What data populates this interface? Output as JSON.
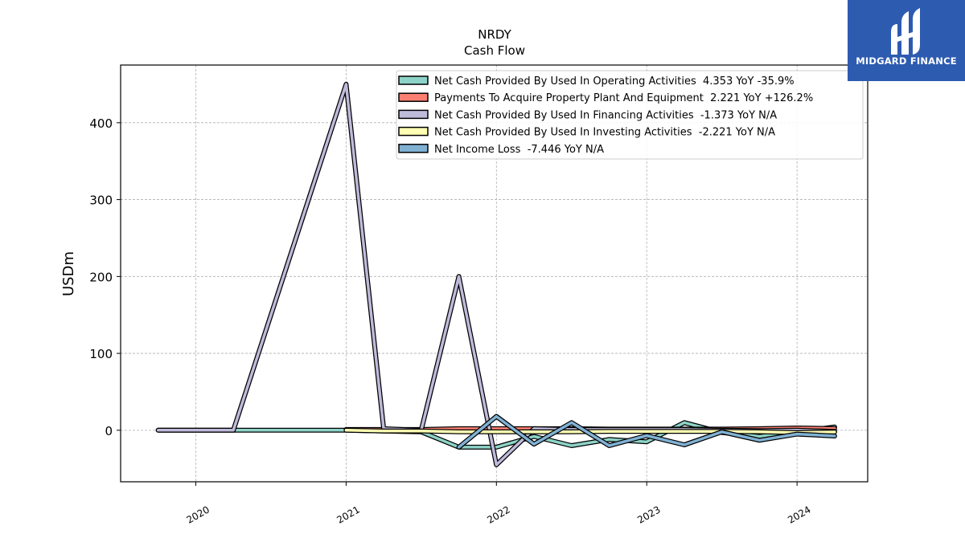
{
  "brand": {
    "name": "MIDGARD FINANCE",
    "logo_icon": "midgard-logo-icon",
    "background": "#2d5bb0"
  },
  "chart_data": {
    "type": "line",
    "title": "NRDY",
    "subtitle": "Cash Flow",
    "xlabel": "",
    "ylabel": "USDm",
    "xlim": [
      2019.5,
      2024.47
    ],
    "ylim": [
      -67,
      475
    ],
    "y_ticks": [
      0,
      100,
      200,
      300,
      400
    ],
    "x_ticks": [
      2020,
      2021,
      2022,
      2023,
      2024
    ],
    "x_tick_labels": [
      "2020",
      "2021",
      "2022",
      "2023",
      "2024"
    ],
    "grid": true,
    "legend_position": "top-right",
    "series": [
      {
        "name": "Net Cash Provided By Used In Operating Activities",
        "legend": "Net Cash Provided By Used In Operating Activities  4.353 YoY -35.9%",
        "color": "#8dd3c7",
        "points": [
          [
            2019.75,
            0
          ],
          [
            2021.0,
            0
          ],
          [
            2021.5,
            -2
          ],
          [
            2021.75,
            -22
          ],
          [
            2022.0,
            -22
          ],
          [
            2022.25,
            -8
          ],
          [
            2022.5,
            -20
          ],
          [
            2022.75,
            -12
          ],
          [
            2023.0,
            -15
          ],
          [
            2023.25,
            10
          ],
          [
            2023.5,
            -3
          ],
          [
            2023.75,
            -8
          ],
          [
            2024.0,
            -2
          ],
          [
            2024.25,
            4.353
          ]
        ]
      },
      {
        "name": "Payments To Acquire Property Plant And Equipment",
        "legend": "Payments To Acquire Property Plant And Equipment  2.221 YoY +126.2%",
        "color": "#fb8072",
        "points": [
          [
            2021.0,
            1
          ],
          [
            2021.25,
            1
          ],
          [
            2021.5,
            1
          ],
          [
            2021.75,
            2
          ],
          [
            2022.0,
            2
          ],
          [
            2022.25,
            2
          ],
          [
            2022.5,
            2
          ],
          [
            2022.75,
            1.5
          ],
          [
            2023.0,
            1.5
          ],
          [
            2023.25,
            1.5
          ],
          [
            2023.5,
            1.5
          ],
          [
            2023.75,
            2
          ],
          [
            2024.0,
            3
          ],
          [
            2024.25,
            2.221
          ]
        ]
      },
      {
        "name": "Net Cash Provided By Used In Financing Activities",
        "legend": "Net Cash Provided By Used In Financing Activities  -1.373 YoY N/A",
        "color": "#bebada",
        "points": [
          [
            2019.75,
            0
          ],
          [
            2020.25,
            0
          ],
          [
            2021.0,
            450
          ],
          [
            2021.25,
            2
          ],
          [
            2021.5,
            0
          ],
          [
            2021.75,
            200
          ],
          [
            2022.0,
            -45
          ],
          [
            2022.25,
            2
          ],
          [
            2022.5,
            1
          ],
          [
            2022.75,
            1
          ],
          [
            2023.0,
            1
          ],
          [
            2023.25,
            1
          ],
          [
            2023.5,
            0
          ],
          [
            2023.75,
            -0.5
          ],
          [
            2024.0,
            0
          ],
          [
            2024.25,
            -1.373
          ]
        ]
      },
      {
        "name": "Net Cash Provided By Used In Investing Activities",
        "legend": "Net Cash Provided By Used In Investing Activities  -2.221 YoY N/A",
        "color": "#ffffb3",
        "points": [
          [
            2021.0,
            0
          ],
          [
            2021.25,
            -1
          ],
          [
            2021.5,
            -1
          ],
          [
            2021.75,
            -2
          ],
          [
            2022.0,
            -2
          ],
          [
            2022.25,
            -2
          ],
          [
            2022.5,
            -2
          ],
          [
            2022.75,
            -1.5
          ],
          [
            2023.0,
            -1.5
          ],
          [
            2023.25,
            -1.5
          ],
          [
            2023.5,
            -1.5
          ],
          [
            2023.75,
            -2
          ],
          [
            2024.0,
            -3
          ],
          [
            2024.25,
            -2.221
          ]
        ]
      },
      {
        "name": "Net Income Loss",
        "legend": "Net Income Loss  -7.446 YoY N/A",
        "color": "#80b1d3",
        "points": [
          [
            2021.75,
            -22
          ],
          [
            2022.0,
            18
          ],
          [
            2022.25,
            -18
          ],
          [
            2022.5,
            10
          ],
          [
            2022.75,
            -20
          ],
          [
            2023.0,
            -7
          ],
          [
            2023.25,
            -19
          ],
          [
            2023.5,
            -2
          ],
          [
            2023.75,
            -13
          ],
          [
            2024.0,
            -5
          ],
          [
            2024.25,
            -7.446
          ]
        ]
      }
    ]
  }
}
